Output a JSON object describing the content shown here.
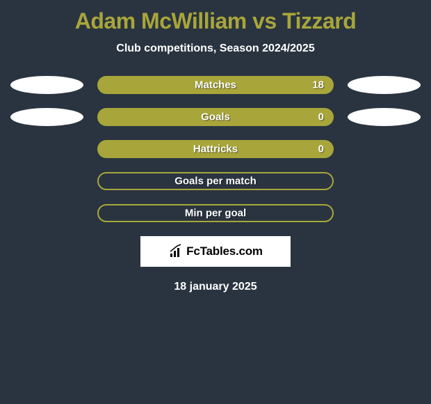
{
  "title": "Adam McWilliam vs Tizzard",
  "subtitle": "Club competitions, Season 2024/2025",
  "date": "18 january 2025",
  "logo_text": "FcTables.com",
  "colors": {
    "background": "#2a3440",
    "title": "#a8a63a",
    "text": "#ffffff",
    "bar_fill": "#a8a63a",
    "bar_hollow_border": "#a8a63a",
    "ellipse_left_1": "#ffffff",
    "ellipse_left_2": "#ffffff",
    "ellipse_right_1": "#ffffff",
    "ellipse_right_2": "#ffffff",
    "logo_bg": "#ffffff"
  },
  "rows": [
    {
      "label": "Matches",
      "value": "18",
      "filled": true,
      "show_left_ellipse": true,
      "show_right_ellipse": true,
      "left_ellipse_color": "#ffffff",
      "right_ellipse_color": "#ffffff"
    },
    {
      "label": "Goals",
      "value": "0",
      "filled": true,
      "show_left_ellipse": true,
      "show_right_ellipse": true,
      "left_ellipse_color": "#ffffff",
      "right_ellipse_color": "#ffffff"
    },
    {
      "label": "Hattricks",
      "value": "0",
      "filled": true,
      "show_left_ellipse": false,
      "show_right_ellipse": false
    },
    {
      "label": "Goals per match",
      "value": "",
      "filled": false,
      "show_left_ellipse": false,
      "show_right_ellipse": false
    },
    {
      "label": "Min per goal",
      "value": "",
      "filled": false,
      "show_left_ellipse": false,
      "show_right_ellipse": false
    }
  ]
}
